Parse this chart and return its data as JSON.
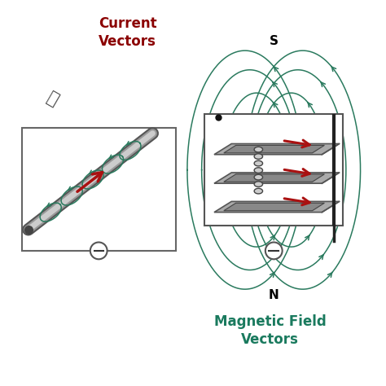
{
  "bg_color": "#ffffff",
  "border_color": "#8899aa",
  "title_left": "Current\nVectors",
  "title_left_color": "#8b0000",
  "title_right": "Magnetic Field\nVectors",
  "title_right_color": "#1a7a5e",
  "field_color": "#2a7a5e",
  "wire_color": "#888888",
  "wire_light": "#bbbbbb",
  "red_color": "#aa1111",
  "dark_color": "#333333",
  "plate_fill": "#aaaaaa",
  "plate_edge": "#555555",
  "S_label": "S",
  "N_label": "N"
}
